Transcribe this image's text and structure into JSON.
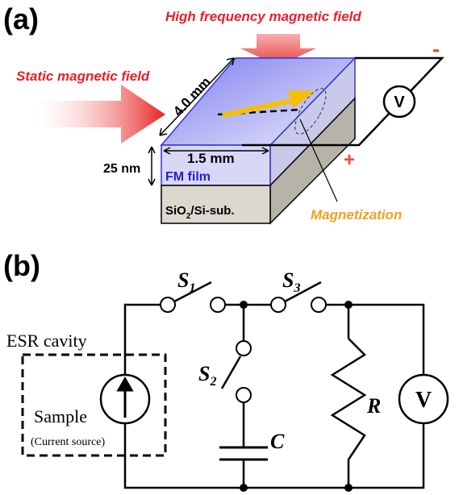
{
  "panel_a": {
    "label": "(a)",
    "hf_field": "High frequency magnetic field",
    "static_field": "Static magnetic field",
    "length": "4.0 mm",
    "width": "1.5 mm",
    "thickness": "25 nm",
    "film": "FM film",
    "substrate": {
      "pre": "SiO",
      "sub": "2",
      "post": "/Si-sub."
    },
    "magnetization": "Magnetization",
    "minus": "-",
    "plus": "+",
    "voltmeter": "V"
  },
  "panel_b": {
    "label": "(b)",
    "switches": [
      {
        "name": "S",
        "sub": "1"
      },
      {
        "name": "S",
        "sub": "2"
      },
      {
        "name": "S",
        "sub": "3"
      }
    ],
    "cavity": "ESR cavity",
    "sample": "Sample",
    "source": "(Current source)",
    "capacitor": "C",
    "resistor": "R",
    "voltmeter": "V"
  }
}
